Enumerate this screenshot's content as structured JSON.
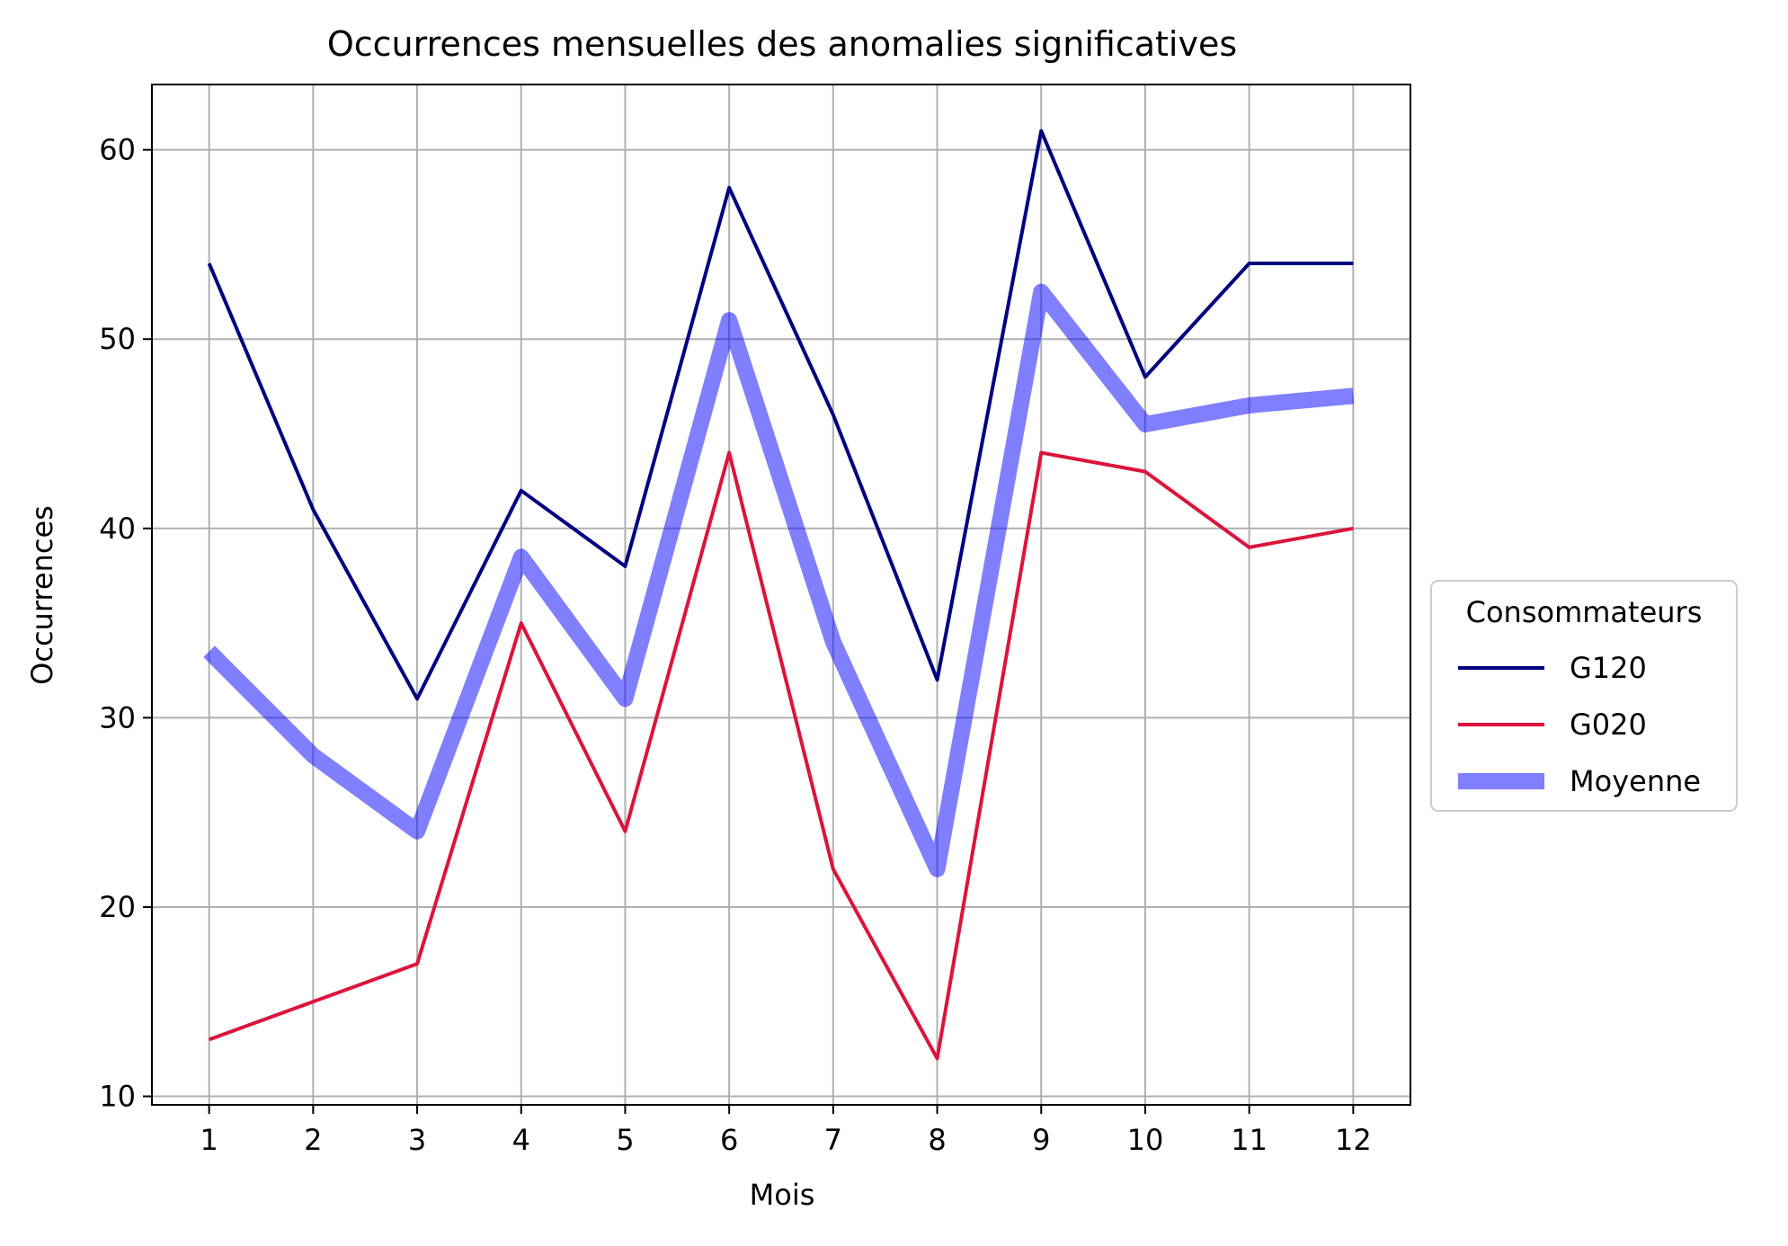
{
  "chart_data": {
    "type": "line",
    "title": "Occurrences mensuelles des anomalies significatives",
    "xlabel": "Mois",
    "ylabel": "Occurrences",
    "x": [
      1,
      2,
      3,
      4,
      5,
      6,
      7,
      8,
      9,
      10,
      11,
      12
    ],
    "x_tick_labels": [
      "1",
      "2",
      "3",
      "4",
      "5",
      "6",
      "7",
      "8",
      "9",
      "10",
      "11",
      "12"
    ],
    "y_ticks": [
      10,
      20,
      30,
      40,
      50,
      60
    ],
    "xlim": [
      0.45,
      12.55
    ],
    "ylim": [
      9.55,
      63.45
    ],
    "grid": true,
    "legend": {
      "title": "Consommateurs",
      "placement": "center-right-outside"
    },
    "series": [
      {
        "name": "G120",
        "color": "#000080",
        "style": "thin",
        "values": [
          54,
          41,
          31,
          42,
          38,
          58,
          46,
          32,
          61,
          48,
          54,
          54
        ]
      },
      {
        "name": "G020",
        "color": "#DC143C",
        "style": "thin",
        "values": [
          13,
          15,
          17,
          35,
          24,
          44,
          22,
          12,
          44,
          43,
          39,
          40
        ]
      },
      {
        "name": "Moyenne",
        "color": "#0000FF",
        "opacity": 0.5,
        "style": "thick",
        "values": [
          33.5,
          28,
          24,
          38.5,
          31,
          51,
          34,
          22,
          52.5,
          45.5,
          46.5,
          47
        ]
      }
    ]
  }
}
